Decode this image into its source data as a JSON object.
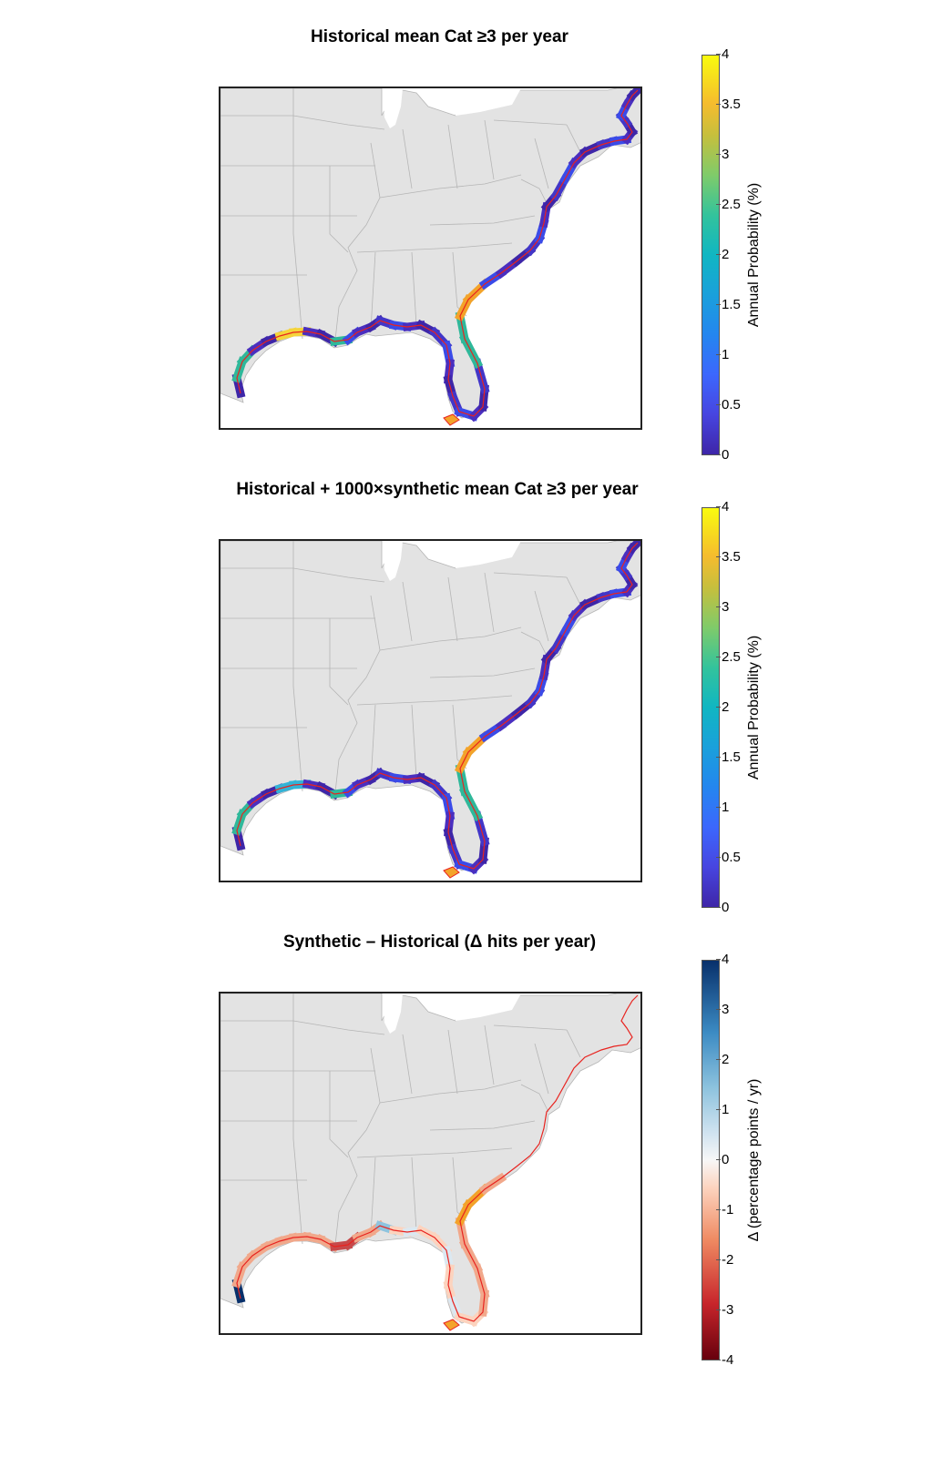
{
  "panels": [
    {
      "title": "Historical mean Cat ≥3 per year",
      "colorbar_label": "Annual Probability (%)",
      "ticks": [
        "4",
        "3.5",
        "3",
        "2.5",
        "2",
        "1.5",
        "1",
        "0.5",
        "0"
      ],
      "scale": "parula"
    },
    {
      "title": "Historical + 1000×synthetic  mean Cat ≥3 per year",
      "colorbar_label": "Annual Probability (%)",
      "ticks": [
        "4",
        "3.5",
        "3",
        "2.5",
        "2",
        "1.5",
        "1",
        "0.5",
        "0"
      ],
      "scale": "parula"
    },
    {
      "title": "Synthetic – Historical (Δ hits per year)",
      "colorbar_label": "Δ (percentage points / yr)",
      "ticks": [
        "4",
        "3",
        "2",
        "1",
        "0",
        "-1",
        "-2",
        "-3",
        "-4"
      ],
      "scale": "diverging"
    }
  ],
  "colors": {
    "land": "#e3e3e3",
    "borders": "#b5b5b5",
    "coast_outline": "#e8231f",
    "parula_low": "#3e26a8",
    "parula_high": "#f9fb0e",
    "diverging_high": "#08306b",
    "diverging_low": "#67000d"
  }
}
